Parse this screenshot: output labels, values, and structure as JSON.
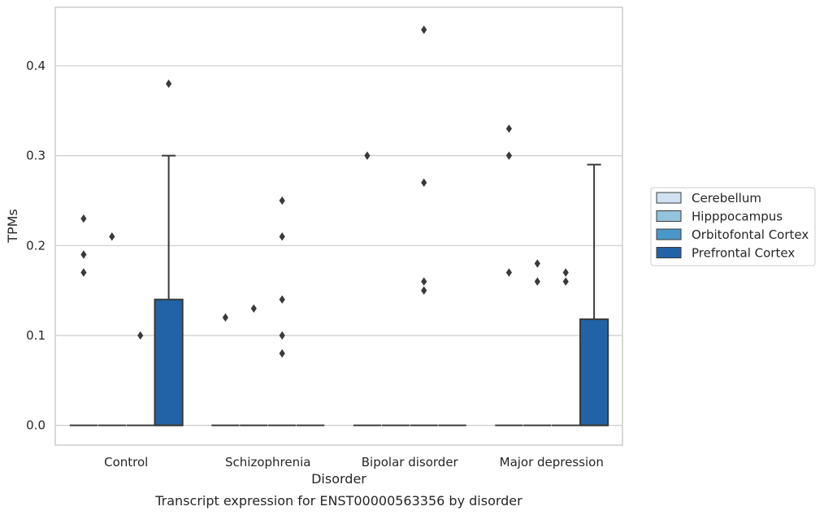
{
  "chart_data": {
    "type": "box",
    "xlabel": "Disorder",
    "ylabel": "TPMs",
    "caption": "Transcript expression for ENST00000563356 by disorder",
    "categories": [
      "Control",
      "Schizophrenia",
      "Bipolar disorder",
      "Major depression"
    ],
    "ylim": [
      -0.022,
      0.465
    ],
    "yticks": [
      0.0,
      0.1,
      0.2,
      0.3,
      0.4
    ],
    "ytick_labels": [
      "0.0",
      "0.1",
      "0.2",
      "0.3",
      "0.4"
    ],
    "grid": "horizontal",
    "legend_position": "right",
    "series": [
      {
        "name": "Cerebellum",
        "color": "#cfe1f2",
        "boxes": [
          {
            "min": 0,
            "q1": 0,
            "median": 0,
            "q3": 0,
            "max": 0,
            "outliers": [
              0.23,
              0.19,
              0.17
            ]
          },
          {
            "min": 0,
            "q1": 0,
            "median": 0,
            "q3": 0,
            "max": 0,
            "outliers": [
              0.12
            ]
          },
          {
            "min": 0,
            "q1": 0,
            "median": 0,
            "q3": 0,
            "max": 0,
            "outliers": [
              0.3
            ]
          },
          {
            "min": 0,
            "q1": 0,
            "median": 0,
            "q3": 0,
            "max": 0,
            "outliers": [
              0.33,
              0.3,
              0.17
            ]
          }
        ]
      },
      {
        "name": "Hipppocampus",
        "color": "#93c4de",
        "boxes": [
          {
            "min": 0,
            "q1": 0,
            "median": 0,
            "q3": 0,
            "max": 0,
            "outliers": [
              0.21
            ]
          },
          {
            "min": 0,
            "q1": 0,
            "median": 0,
            "q3": 0,
            "max": 0,
            "outliers": [
              0.13
            ]
          },
          {
            "min": 0,
            "q1": 0,
            "median": 0,
            "q3": 0,
            "max": 0,
            "outliers": []
          },
          {
            "min": 0,
            "q1": 0,
            "median": 0,
            "q3": 0,
            "max": 0,
            "outliers": [
              0.18,
              0.16
            ]
          }
        ]
      },
      {
        "name": "Orbitofontal Cortex",
        "color": "#4a98c9",
        "boxes": [
          {
            "min": 0,
            "q1": 0,
            "median": 0,
            "q3": 0,
            "max": 0,
            "outliers": [
              0.1
            ]
          },
          {
            "min": 0,
            "q1": 0,
            "median": 0,
            "q3": 0,
            "max": 0,
            "outliers": [
              0.25,
              0.21,
              0.14,
              0.1,
              0.08
            ]
          },
          {
            "min": 0,
            "q1": 0,
            "median": 0,
            "q3": 0,
            "max": 0,
            "outliers": [
              0.44,
              0.27,
              0.16,
              0.15
            ]
          },
          {
            "min": 0,
            "q1": 0,
            "median": 0,
            "q3": 0,
            "max": 0,
            "outliers": [
              0.17,
              0.16
            ]
          }
        ]
      },
      {
        "name": "Prefrontal Cortex",
        "color": "#2163a6",
        "boxes": [
          {
            "min": 0,
            "q1": 0,
            "median": 0,
            "q3": 0.14,
            "max": 0.3,
            "outliers": [
              0.38
            ]
          },
          {
            "min": 0,
            "q1": 0,
            "median": 0,
            "q3": 0,
            "max": 0,
            "outliers": []
          },
          {
            "min": 0,
            "q1": 0,
            "median": 0,
            "q3": 0,
            "max": 0,
            "outliers": []
          },
          {
            "min": 0,
            "q1": 0,
            "median": 0,
            "q3": 0.118,
            "max": 0.29,
            "outliers": []
          }
        ]
      }
    ]
  }
}
